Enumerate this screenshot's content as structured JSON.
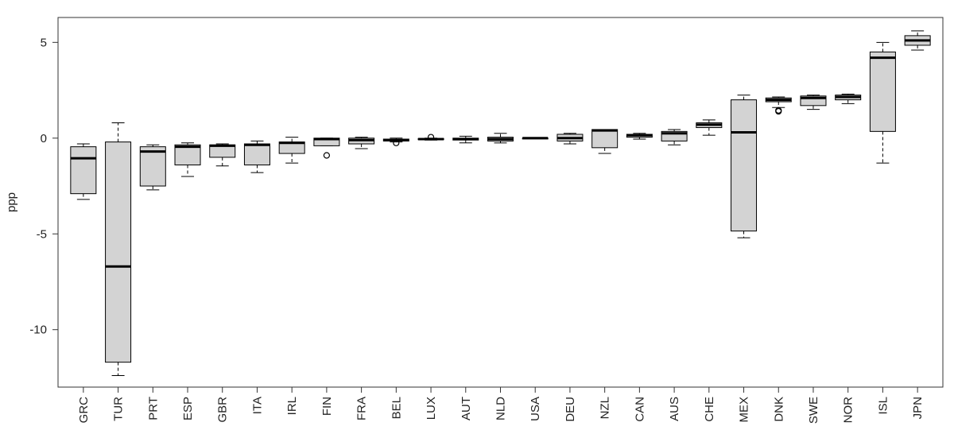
{
  "chart_data": {
    "type": "boxplot",
    "title": "",
    "xlabel": "",
    "ylabel": "ppp",
    "ylim": [
      -13,
      6.3
    ],
    "yticks": [
      5,
      0,
      -5,
      -10
    ],
    "grid": false,
    "legend": "none",
    "box_fill": "#d3d3d3",
    "stroke": "#000000",
    "categories": [
      "GRC",
      "TUR",
      "PRT",
      "ESP",
      "GBR",
      "ITA",
      "IRL",
      "FIN",
      "FRA",
      "BEL",
      "LUX",
      "AUT",
      "NLD",
      "USA",
      "DEU",
      "NZL",
      "CAN",
      "AUS",
      "CHE",
      "MEX",
      "DNK",
      "SWE",
      "NOR",
      "ISL",
      "JPN"
    ],
    "boxes": [
      {
        "label": "GRC",
        "whisker_low": -3.2,
        "q1": -2.9,
        "median": -1.05,
        "q3": -0.45,
        "whisker_high": -0.3,
        "outliers": []
      },
      {
        "label": "TUR",
        "whisker_low": -12.4,
        "q1": -11.7,
        "median": -6.7,
        "q3": -0.2,
        "whisker_high": 0.8,
        "outliers": []
      },
      {
        "label": "PRT",
        "whisker_low": -2.7,
        "q1": -2.5,
        "median": -0.7,
        "q3": -0.45,
        "whisker_high": -0.35,
        "outliers": []
      },
      {
        "label": "ESP",
        "whisker_low": -2.0,
        "q1": -1.4,
        "median": -0.45,
        "q3": -0.35,
        "whisker_high": -0.25,
        "outliers": []
      },
      {
        "label": "GBR",
        "whisker_low": -1.45,
        "q1": -1.0,
        "median": -0.4,
        "q3": -0.35,
        "whisker_high": -0.3,
        "outliers": []
      },
      {
        "label": "ITA",
        "whisker_low": -1.8,
        "q1": -1.4,
        "median": -0.35,
        "q3": -0.3,
        "whisker_high": -0.15,
        "outliers": []
      },
      {
        "label": "IRL",
        "whisker_low": -1.3,
        "q1": -0.8,
        "median": -0.25,
        "q3": -0.2,
        "whisker_high": 0.05,
        "outliers": []
      },
      {
        "label": "FIN",
        "whisker_low": -0.4,
        "q1": -0.4,
        "median": -0.05,
        "q3": 0.0,
        "whisker_high": 0.0,
        "outliers": [
          -0.9
        ]
      },
      {
        "label": "FRA",
        "whisker_low": -0.55,
        "q1": -0.3,
        "median": -0.1,
        "q3": 0.0,
        "whisker_high": 0.05,
        "outliers": []
      },
      {
        "label": "BEL",
        "whisker_low": -0.2,
        "q1": -0.15,
        "median": -0.1,
        "q3": -0.05,
        "whisker_high": 0.0,
        "outliers": [
          -0.25
        ]
      },
      {
        "label": "LUX",
        "whisker_low": -0.1,
        "q1": -0.08,
        "median": -0.05,
        "q3": -0.02,
        "whisker_high": 0.0,
        "outliers": [
          0.05
        ]
      },
      {
        "label": "AUT",
        "whisker_low": -0.25,
        "q1": -0.1,
        "median": -0.05,
        "q3": 0.0,
        "whisker_high": 0.1,
        "outliers": []
      },
      {
        "label": "NLD",
        "whisker_low": -0.25,
        "q1": -0.15,
        "median": -0.05,
        "q3": 0.05,
        "whisker_high": 0.25,
        "outliers": []
      },
      {
        "label": "USA",
        "whisker_low": 0.0,
        "q1": 0.0,
        "median": 0.0,
        "q3": 0.0,
        "whisker_high": 0.0,
        "outliers": []
      },
      {
        "label": "DEU",
        "whisker_low": -0.3,
        "q1": -0.15,
        "median": 0.0,
        "q3": 0.2,
        "whisker_high": 0.25,
        "outliers": []
      },
      {
        "label": "NZL",
        "whisker_low": -0.8,
        "q1": -0.5,
        "median": 0.4,
        "q3": 0.45,
        "whisker_high": 0.45,
        "outliers": []
      },
      {
        "label": "CAN",
        "whisker_low": -0.05,
        "q1": 0.05,
        "median": 0.15,
        "q3": 0.2,
        "whisker_high": 0.25,
        "outliers": []
      },
      {
        "label": "AUS",
        "whisker_low": -0.35,
        "q1": -0.15,
        "median": 0.25,
        "q3": 0.35,
        "whisker_high": 0.45,
        "outliers": []
      },
      {
        "label": "CHE",
        "whisker_low": 0.15,
        "q1": 0.55,
        "median": 0.7,
        "q3": 0.8,
        "whisker_high": 0.95,
        "outliers": []
      },
      {
        "label": "MEX",
        "whisker_low": -5.2,
        "q1": -4.85,
        "median": 0.3,
        "q3": 2.0,
        "whisker_high": 2.25,
        "outliers": []
      },
      {
        "label": "DNK",
        "whisker_low": 1.6,
        "q1": 1.9,
        "median": 2.0,
        "q3": 2.1,
        "whisker_high": 2.15,
        "outliers": [
          1.45,
          1.4
        ]
      },
      {
        "label": "SWE",
        "whisker_low": 1.5,
        "q1": 1.7,
        "median": 2.1,
        "q3": 2.2,
        "whisker_high": 2.25,
        "outliers": []
      },
      {
        "label": "NOR",
        "whisker_low": 1.8,
        "q1": 2.0,
        "median": 2.15,
        "q3": 2.25,
        "whisker_high": 2.3,
        "outliers": []
      },
      {
        "label": "ISL",
        "whisker_low": -1.3,
        "q1": 0.35,
        "median": 4.2,
        "q3": 4.5,
        "whisker_high": 5.0,
        "outliers": []
      },
      {
        "label": "JPN",
        "whisker_low": 4.6,
        "q1": 4.85,
        "median": 5.1,
        "q3": 5.35,
        "whisker_high": 5.6,
        "outliers": []
      }
    ]
  }
}
